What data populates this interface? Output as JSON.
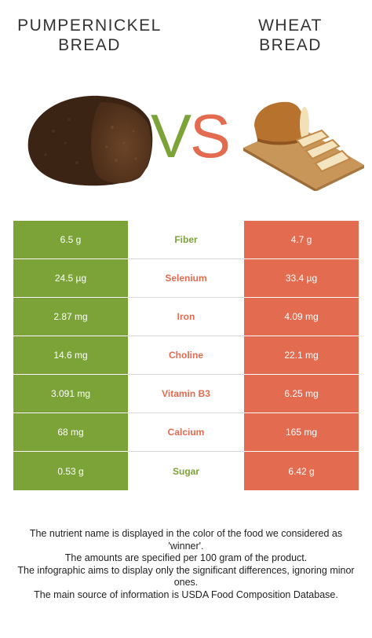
{
  "left_food": {
    "title_line1": "PUMPERNICKEL",
    "title_line2": "BREAD",
    "color": "#7ba338"
  },
  "right_food": {
    "title_line1": "WHEAT",
    "title_line2": "BREAD",
    "color": "#e36b4f"
  },
  "vs": {
    "v": "V",
    "s": "S"
  },
  "rows": [
    {
      "nutrient": "Fiber",
      "left": "6.5 g",
      "right": "4.7 g",
      "winner": "left"
    },
    {
      "nutrient": "Selenium",
      "left": "24.5 µg",
      "right": "33.4 µg",
      "winner": "right"
    },
    {
      "nutrient": "Iron",
      "left": "2.87 mg",
      "right": "4.09 mg",
      "winner": "right"
    },
    {
      "nutrient": "Choline",
      "left": "14.6 mg",
      "right": "22.1 mg",
      "winner": "right"
    },
    {
      "nutrient": "Vitamin B3",
      "left": "3.091 mg",
      "right": "6.25 mg",
      "winner": "right"
    },
    {
      "nutrient": "Calcium",
      "left": "68 mg",
      "right": "165 mg",
      "winner": "right"
    },
    {
      "nutrient": "Sugar",
      "left": "0.53 g",
      "right": "6.42 g",
      "winner": "left"
    }
  ],
  "footnote": {
    "line1": "The nutrient name is displayed in the color of the food we considered as 'winner'.",
    "line2": "The amounts are specified per 100 gram of the product.",
    "line3": "The infographic aims to display only the significant differences, ignoring minor ones.",
    "line4": "The main source of information is USDA Food Composition Database."
  }
}
